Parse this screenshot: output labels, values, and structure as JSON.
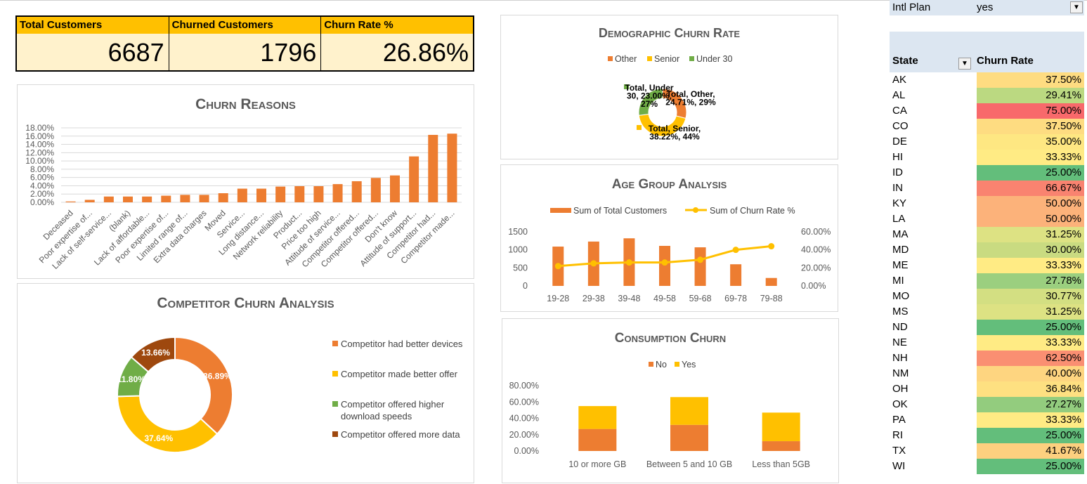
{
  "kpis": [
    {
      "label": "Total Customers",
      "value": "6687"
    },
    {
      "label": "Churned Customers",
      "value": "1796"
    },
    {
      "label": "Churn Rate %",
      "value": "26.86%"
    }
  ],
  "filter": {
    "label": "Intl Plan",
    "value": "yes"
  },
  "table": {
    "headers": [
      "State",
      "Churn Rate"
    ],
    "rows": [
      {
        "state": "AK",
        "rate": "37.50%",
        "color": "#fedc81"
      },
      {
        "state": "AL",
        "rate": "29.41%",
        "color": "#bbd981"
      },
      {
        "state": "CA",
        "rate": "75.00%",
        "color": "#f8696b"
      },
      {
        "state": "CO",
        "rate": "37.50%",
        "color": "#fedc81"
      },
      {
        "state": "DE",
        "rate": "35.00%",
        "color": "#fee782"
      },
      {
        "state": "HI",
        "rate": "33.33%",
        "color": "#ffeb84"
      },
      {
        "state": "ID",
        "rate": "25.00%",
        "color": "#63be7b"
      },
      {
        "state": "IN",
        "rate": "66.67%",
        "color": "#f98370"
      },
      {
        "state": "KY",
        "rate": "50.00%",
        "color": "#fcb27a"
      },
      {
        "state": "LA",
        "rate": "50.00%",
        "color": "#fcb27a"
      },
      {
        "state": "MA",
        "rate": "31.25%",
        "color": "#dde283"
      },
      {
        "state": "MD",
        "rate": "30.00%",
        "color": "#c9db81"
      },
      {
        "state": "ME",
        "rate": "33.33%",
        "color": "#ffeb84"
      },
      {
        "state": "MI",
        "rate": "27.78%",
        "color": "#9bcf7f"
      },
      {
        "state": "MO",
        "rate": "30.77%",
        "color": "#d3df82"
      },
      {
        "state": "MS",
        "rate": "31.25%",
        "color": "#dde283"
      },
      {
        "state": "ND",
        "rate": "25.00%",
        "color": "#63be7b"
      },
      {
        "state": "NE",
        "rate": "33.33%",
        "color": "#ffeb84"
      },
      {
        "state": "NH",
        "rate": "62.50%",
        "color": "#fa8f72"
      },
      {
        "state": "NM",
        "rate": "40.00%",
        "color": "#fed580"
      },
      {
        "state": "OH",
        "rate": "36.84%",
        "color": "#fee081"
      },
      {
        "state": "OK",
        "rate": "27.27%",
        "color": "#93cc7e"
      },
      {
        "state": "PA",
        "rate": "33.33%",
        "color": "#ffeb84"
      },
      {
        "state": "RI",
        "rate": "25.00%",
        "color": "#63be7b"
      },
      {
        "state": "TX",
        "rate": "41.67%",
        "color": "#fdd07f"
      },
      {
        "state": "WI",
        "rate": "25.00%",
        "color": "#63be7b"
      }
    ]
  },
  "chart_data": [
    {
      "type": "bar",
      "title": "Churn Reasons",
      "categories": [
        "Deceased",
        "Poor expertise of...",
        "Lack of self-service...",
        "(blank)",
        "Lack of affordable...",
        "Poor expertise of...",
        "Limited range of...",
        "Extra data charges",
        "Moved",
        "Service...",
        "Long distance...",
        "Network reliability",
        "Product...",
        "Price too high",
        "Attitude of service...",
        "Competitor offered...",
        "Competitor offered...",
        "Don't know",
        "Attitude of support...",
        "Competitor had...",
        "Competitor made..."
      ],
      "values": [
        0.2,
        0.6,
        1.4,
        1.4,
        1.4,
        1.6,
        1.8,
        1.8,
        2.2,
        3.3,
        3.3,
        3.8,
        3.9,
        3.9,
        4.4,
        5.1,
        5.9,
        6.5,
        11.1,
        16.3,
        16.6
      ],
      "yticks": [
        "0.00%",
        "2.00%",
        "4.00%",
        "6.00%",
        "8.00%",
        "10.00%",
        "12.00%",
        "14.00%",
        "16.00%",
        "18.00%"
      ],
      "ylim": [
        0,
        18
      ],
      "color": "#ed7d31"
    },
    {
      "type": "pie",
      "title": "Demographic Churn Rate",
      "legend": [
        {
          "name": "Other",
          "color": "#ed7d31"
        },
        {
          "name": "Senior",
          "color": "#ffc000"
        },
        {
          "name": "Under 30",
          "color": "#70ad47"
        }
      ],
      "slices": [
        {
          "name": "Other",
          "percent": 29,
          "rate": "24.71%",
          "label_lines": [
            "Total, Other,",
            "24.71%, 29%"
          ],
          "color": "#ed7d31"
        },
        {
          "name": "Senior",
          "percent": 44,
          "rate": "38.22%",
          "label_lines": [
            "Total, Senior,",
            "38.22%, 44%"
          ],
          "color": "#ffc000"
        },
        {
          "name": "Under 30",
          "percent": 27,
          "rate": "23.00%",
          "label_lines": [
            "Total, Under",
            "30, 23.00%,",
            "27%"
          ],
          "color": "#70ad47"
        }
      ]
    },
    {
      "type": "bar",
      "title": "Age Group Analysis",
      "categories": [
        "19-28",
        "29-38",
        "39-48",
        "49-58",
        "59-68",
        "69-78",
        "79-88"
      ],
      "series": [
        {
          "name": "Sum of Total Customers",
          "type": "bar",
          "color": "#ed7d31",
          "values": [
            1090,
            1230,
            1320,
            1110,
            1070,
            600,
            220
          ]
        },
        {
          "name": "Sum of Churn Rate %",
          "type": "line",
          "color": "#ffc000",
          "values": [
            22,
            25,
            26,
            26,
            29,
            40,
            44
          ]
        }
      ],
      "yticks_left": [
        "0",
        "500",
        "1000",
        "1500"
      ],
      "ylim_left": [
        0,
        1500
      ],
      "yticks_right": [
        "0.00%",
        "20.00%",
        "40.00%",
        "60.00%"
      ],
      "ylim_right": [
        0,
        60
      ]
    },
    {
      "type": "bar",
      "title": "Consumption Churn",
      "categories": [
        "10 or more GB",
        "Between 5 and 10 GB",
        "Less than 5GB"
      ],
      "series": [
        {
          "name": "No",
          "color": "#ed7d31",
          "values": [
            27,
            32,
            12
          ]
        },
        {
          "name": "Yes",
          "color": "#ffc000",
          "values": [
            28,
            34,
            35
          ]
        }
      ],
      "yticks": [
        "0.00%",
        "20.00%",
        "40.00%",
        "60.00%",
        "80.00%"
      ],
      "ylim": [
        0,
        80
      ]
    },
    {
      "type": "pie",
      "title": "Competitor Churn Analysis",
      "slices": [
        {
          "name": "Competitor had better devices",
          "value": 36.89,
          "label": "36.89%",
          "color": "#ed7d31"
        },
        {
          "name": "Competitor made better offer",
          "value": 37.64,
          "label": "37.64%",
          "color": "#ffc000"
        },
        {
          "name": "Competitor offered higher download speeds",
          "value": 11.8,
          "label": "11.80%",
          "color": "#70ad47"
        },
        {
          "name": "Competitor offered more data",
          "value": 13.66,
          "label": "13.66%",
          "color": "#9e480e"
        }
      ],
      "legend_lines": [
        [
          "Competitor had better devices"
        ],
        [
          "Competitor made better offer"
        ],
        [
          "Competitor offered higher",
          "download speeds"
        ],
        [
          "Competitor offered more data"
        ]
      ]
    }
  ]
}
